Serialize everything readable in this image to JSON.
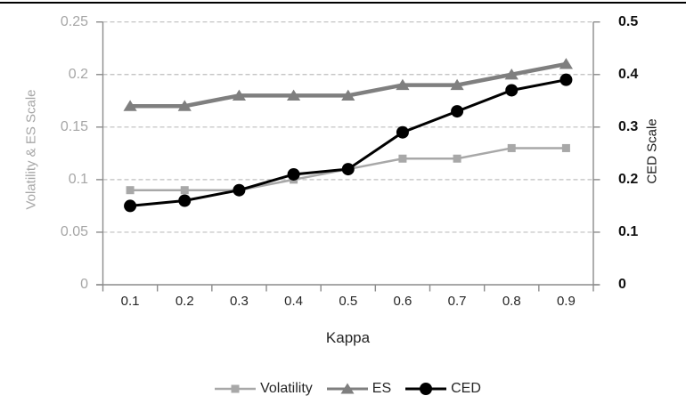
{
  "chart_data": {
    "type": "line",
    "title": "",
    "xlabel": "Kappa",
    "x_tick_labels": [
      "0.1",
      "0.2",
      "0.3",
      "0.4",
      "0.5",
      "0.6",
      "0.7",
      "0.8",
      "0.9"
    ],
    "x": [
      0.1,
      0.2,
      0.3,
      0.4,
      0.5,
      0.6,
      0.7,
      0.8,
      0.9
    ],
    "left_axis": {
      "title": "Volatility & ES Scale",
      "tick_labels": [
        "0.25",
        "0.2",
        "0.15",
        "0.1",
        "0.05",
        "0"
      ],
      "tick_values": [
        0.25,
        0.2,
        0.15,
        0.1,
        0.05,
        0
      ],
      "range": [
        0,
        0.25
      ],
      "text_color": "#a6a6a6"
    },
    "right_axis": {
      "title": "CED Scale",
      "tick_labels": [
        "0.5",
        "0.4",
        "0.3",
        "0.2",
        "0.1",
        "0"
      ],
      "tick_values": [
        0.5,
        0.4,
        0.3,
        0.2,
        0.1,
        0
      ],
      "range": [
        0,
        0.5
      ],
      "text_color": "#111111"
    },
    "series": [
      {
        "name": "Volatility",
        "axis": "left",
        "marker": "square",
        "color": "#a8a8a8",
        "line_width": 2.5,
        "values": [
          0.09,
          0.09,
          0.09,
          0.1,
          0.11,
          0.12,
          0.12,
          0.13,
          0.13
        ]
      },
      {
        "name": "ES",
        "axis": "left",
        "marker": "triangle",
        "color": "#7f7f7f",
        "line_width": 4.5,
        "values": [
          0.17,
          0.17,
          0.18,
          0.18,
          0.18,
          0.19,
          0.19,
          0.2,
          0.21
        ]
      },
      {
        "name": "CED",
        "axis": "right",
        "marker": "circle",
        "color": "#000000",
        "line_width": 3,
        "values": [
          0.15,
          0.16,
          0.18,
          0.21,
          0.22,
          0.29,
          0.33,
          0.37,
          0.39
        ]
      }
    ],
    "grid": "horizontal, dashed, at every left-axis tick except 0",
    "gridline_color": "#bfbfbf",
    "axis_line_color": "#8c8c8c",
    "legend_position": "bottom",
    "border_top_color": "#000000"
  }
}
